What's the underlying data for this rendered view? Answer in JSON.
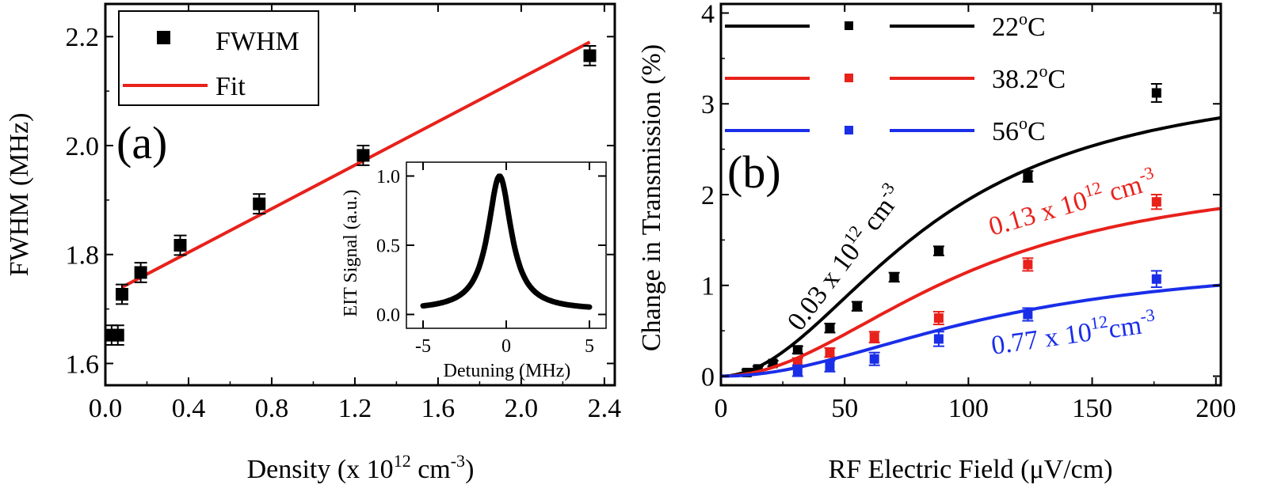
{
  "chart_data": [
    {
      "type": "scatter",
      "panel_label": "(a)",
      "xlabel": "Density (x 10",
      "xlabel_sup": "12",
      "xlabel_mid": " cm",
      "xlabel_sup2": "-3",
      "xlabel_end": ")",
      "ylabel": "FWHM (MHz)",
      "xlim": [
        0.0,
        2.45
      ],
      "ylim": [
        1.56,
        2.26
      ],
      "xticks": [
        0.0,
        0.4,
        0.8,
        1.2,
        1.6,
        2.0,
        2.4
      ],
      "xtick_labels": [
        "0.0",
        "0.4",
        "0.8",
        "1.2",
        "1.6",
        "2.0",
        "2.4"
      ],
      "yticks": [
        1.6,
        1.8,
        2.0,
        2.2
      ],
      "ytick_labels": [
        "1.6",
        "1.8",
        "2.0",
        "2.2"
      ],
      "legend": [
        {
          "label": "FWHM",
          "kind": "marker",
          "color": "#000000"
        },
        {
          "label": "Fit",
          "kind": "line",
          "color": "#e8211b"
        }
      ],
      "series": [
        {
          "name": "FWHM",
          "color": "#000000",
          "points": [
            {
              "x": 0.03,
              "y": 1.652,
              "err": 0.018
            },
            {
              "x": 0.06,
              "y": 1.652,
              "err": 0.018
            },
            {
              "x": 0.08,
              "y": 1.727,
              "err": 0.018
            },
            {
              "x": 0.17,
              "y": 1.767,
              "err": 0.018
            },
            {
              "x": 0.36,
              "y": 1.817,
              "err": 0.018
            },
            {
              "x": 0.74,
              "y": 1.893,
              "err": 0.018
            },
            {
              "x": 1.24,
              "y": 1.982,
              "err": 0.018
            },
            {
              "x": 2.33,
              "y": 2.165,
              "err": 0.018
            }
          ]
        }
      ],
      "fit": {
        "name": "Fit",
        "color": "#e8211b",
        "x": [
          0.08,
          2.33
        ],
        "y": [
          1.74,
          2.19
        ]
      },
      "inset": {
        "type": "line",
        "xlabel": "Detuning (MHz)",
        "ylabel": "EIT Signal (a.u.)",
        "xlim": [
          -6,
          6
        ],
        "ylim": [
          -0.1,
          1.1
        ],
        "xticks": [
          -5,
          0,
          5
        ],
        "xtick_labels": [
          "-5",
          "0",
          "5"
        ],
        "yticks": [
          0.0,
          0.5,
          1.0
        ],
        "ytick_labels": [
          "0.0",
          "0.5",
          "1.0"
        ],
        "peak_center": -0.4,
        "peak_fwhm": 1.7,
        "peak_height": 1.0,
        "baseline": 0.03,
        "x_range": [
          -5.0,
          5.0
        ]
      }
    },
    {
      "type": "scatter",
      "panel_label": "(b)",
      "xlabel": "RF Electric Field (μV/cm)",
      "ylabel": "Change in Transmission (%)",
      "xlim": [
        0,
        202
      ],
      "ylim": [
        -0.1,
        4.1
      ],
      "xticks": [
        0,
        50,
        100,
        150,
        200
      ],
      "xtick_labels": [
        "0",
        "50",
        "100",
        "150",
        "200"
      ],
      "yticks": [
        0,
        1,
        2,
        3,
        4
      ],
      "ytick_labels": [
        "0",
        "1",
        "2",
        "3",
        "4"
      ],
      "legend": [
        {
          "label": "22",
          "sup": "o",
          "unit": "C",
          "color": "#000000"
        },
        {
          "label": "38.2",
          "sup": "o",
          "unit": "C",
          "color": "#e8211b"
        },
        {
          "label": "56",
          "sup": "o",
          "unit": "C",
          "color": "#1a2ee8"
        }
      ],
      "series": [
        {
          "name": "22°C",
          "color": "#000000",
          "x": [
            10.5,
            15,
            21,
            31,
            44,
            55,
            70,
            88,
            124,
            176
          ],
          "y": [
            0.04,
            0.08,
            0.14,
            0.29,
            0.53,
            0.77,
            1.09,
            1.38,
            2.2,
            3.12
          ],
          "err": [
            0.03,
            0.03,
            0.03,
            0.04,
            0.05,
            0.05,
            0.05,
            0.05,
            0.06,
            0.1
          ],
          "fit_amp": 3.35,
          "fit_scale": 85,
          "annotation": "0.03 x 10",
          "annotation_sup": "12",
          "annotation_unit": " cm",
          "annotation_sup2": "-3"
        },
        {
          "name": "38.2°C",
          "color": "#e8211b",
          "x": [
            31,
            44,
            62,
            88,
            124,
            176
          ],
          "y": [
            0.15,
            0.26,
            0.43,
            0.64,
            1.23,
            1.92
          ],
          "err": [
            0.05,
            0.05,
            0.06,
            0.07,
            0.07,
            0.08
          ],
          "fit_amp": 2.3,
          "fit_scale": 100,
          "annotation": "0.13 x 10",
          "annotation_sup": "12",
          "annotation_unit": " cm",
          "annotation_sup2": "-3"
        },
        {
          "name": "56°C",
          "color": "#1a2ee8",
          "x": [
            31,
            44,
            62,
            88,
            124,
            176
          ],
          "y": [
            0.06,
            0.11,
            0.19,
            0.41,
            0.68,
            1.07
          ],
          "err": [
            0.06,
            0.06,
            0.07,
            0.08,
            0.07,
            0.09
          ],
          "fit_amp": 1.3,
          "fit_scale": 110,
          "annotation": "0.77 x 10",
          "annotation_sup": "12",
          "annotation_unit": "cm",
          "annotation_sup2": "-3"
        }
      ]
    }
  ]
}
